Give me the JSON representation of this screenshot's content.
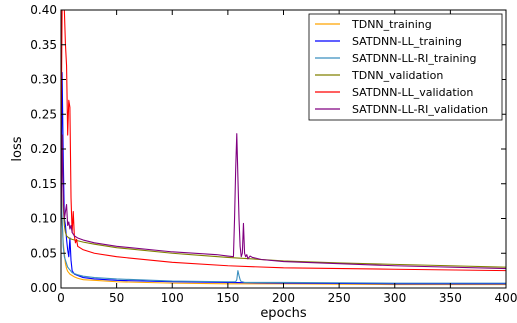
{
  "chart_data": {
    "type": "line",
    "title": "",
    "xlabel": "epochs",
    "ylabel": "loss",
    "xlim": [
      0,
      400
    ],
    "ylim": [
      0,
      0.4
    ],
    "xticks": [
      "0",
      "50",
      "100",
      "150",
      "200",
      "250",
      "300",
      "350",
      "400"
    ],
    "yticks": [
      "0.00",
      "0.05",
      "0.10",
      "0.15",
      "0.20",
      "0.25",
      "0.30",
      "0.35",
      "0.40"
    ],
    "grid": false,
    "legend_position": "top-right",
    "series": [
      {
        "name": "TDNN_training",
        "color": "#ffa500",
        "x": [
          0,
          1,
          2,
          3,
          4,
          5,
          6,
          7,
          8,
          10,
          12,
          15,
          20,
          30,
          50,
          100,
          150,
          200,
          300,
          400
        ],
        "y": [
          0.14,
          0.1,
          0.065,
          0.05,
          0.035,
          0.028,
          0.024,
          0.022,
          0.02,
          0.018,
          0.016,
          0.014,
          0.012,
          0.011,
          0.009,
          0.007,
          0.006,
          0.006,
          0.005,
          0.005
        ]
      },
      {
        "name": "SATDNN-LL_training",
        "color": "#0000ff",
        "x": [
          0,
          1,
          2,
          3,
          4,
          5,
          6,
          7,
          8,
          9,
          10,
          12,
          15,
          20,
          30,
          50,
          100,
          150,
          200,
          300,
          400
        ],
        "y": [
          0.12,
          0.31,
          0.19,
          0.1,
          0.09,
          0.07,
          0.055,
          0.045,
          0.072,
          0.04,
          0.025,
          0.02,
          0.018,
          0.015,
          0.013,
          0.011,
          0.009,
          0.008,
          0.007,
          0.006,
          0.006
        ]
      },
      {
        "name": "SATDNN-LL-RI_training",
        "color": "#3b8fbf",
        "x": [
          0,
          1,
          2,
          3,
          4,
          5,
          6,
          8,
          10,
          15,
          20,
          30,
          50,
          100,
          150,
          157,
          158,
          159,
          160,
          161,
          162,
          163,
          165,
          170,
          200,
          300,
          400
        ],
        "y": [
          0.15,
          0.1,
          0.06,
          0.045,
          0.04,
          0.035,
          0.03,
          0.026,
          0.022,
          0.019,
          0.017,
          0.015,
          0.013,
          0.01,
          0.009,
          0.009,
          0.012,
          0.025,
          0.018,
          0.012,
          0.009,
          0.009,
          0.008,
          0.008,
          0.008,
          0.007,
          0.007
        ]
      },
      {
        "name": "TDNN_validation",
        "color": "#808000",
        "x": [
          0,
          1,
          2,
          3,
          4,
          5,
          7,
          10,
          15,
          20,
          30,
          50,
          100,
          150,
          200,
          250,
          300,
          350,
          400
        ],
        "y": [
          0.12,
          0.22,
          0.12,
          0.09,
          0.08,
          0.075,
          0.072,
          0.07,
          0.068,
          0.066,
          0.063,
          0.058,
          0.05,
          0.044,
          0.039,
          0.036,
          0.034,
          0.032,
          0.03
        ]
      },
      {
        "name": "SATDNN-LL_validation",
        "color": "#ff0000",
        "x": [
          0,
          1,
          2,
          3,
          4,
          5,
          6,
          7,
          8,
          9,
          10,
          11,
          12,
          13,
          14,
          15,
          20,
          30,
          50,
          100,
          150,
          200,
          300,
          400
        ],
        "y": [
          0.2,
          0.4,
          0.4,
          0.4,
          0.35,
          0.32,
          0.22,
          0.27,
          0.26,
          0.13,
          0.08,
          0.11,
          0.075,
          0.065,
          0.07,
          0.06,
          0.055,
          0.05,
          0.045,
          0.037,
          0.032,
          0.029,
          0.027,
          0.025
        ]
      },
      {
        "name": "SATDNN-LL-RI_validation",
        "color": "#800080",
        "x": [
          0,
          1,
          2,
          3,
          4,
          5,
          6,
          7,
          8,
          9,
          10,
          12,
          15,
          20,
          30,
          50,
          100,
          140,
          150,
          155,
          156,
          157,
          158,
          159,
          160,
          161,
          162,
          163,
          164,
          165,
          166,
          167,
          168,
          170,
          172,
          175,
          180,
          200,
          300,
          400
        ],
        "y": [
          0.09,
          0.22,
          0.13,
          0.1,
          0.11,
          0.12,
          0.09,
          0.095,
          0.085,
          0.09,
          0.08,
          0.075,
          0.072,
          0.069,
          0.065,
          0.06,
          0.052,
          0.048,
          0.046,
          0.045,
          0.1,
          0.17,
          0.222,
          0.16,
          0.1,
          0.06,
          0.045,
          0.05,
          0.093,
          0.05,
          0.045,
          0.048,
          0.042,
          0.046,
          0.044,
          0.043,
          0.041,
          0.038,
          0.032,
          0.028
        ]
      }
    ]
  }
}
